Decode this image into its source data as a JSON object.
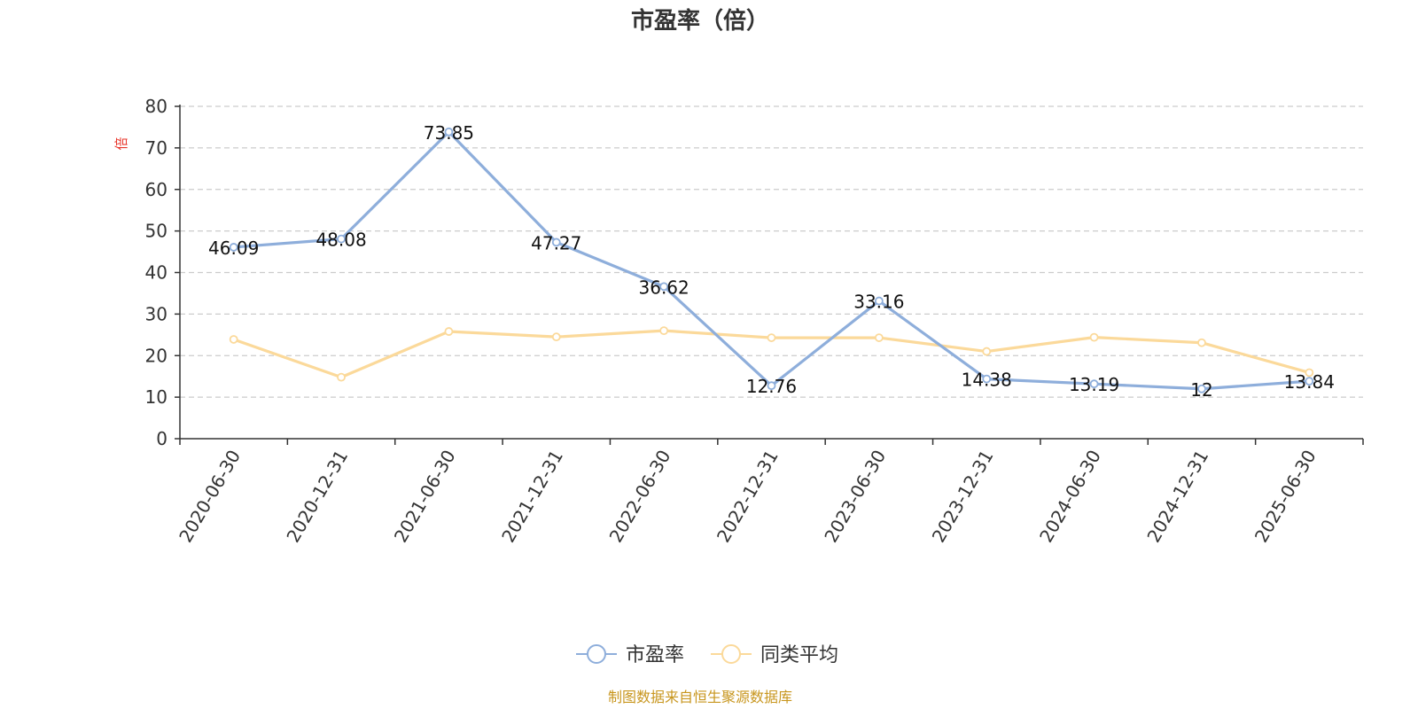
{
  "chart_data": {
    "type": "line",
    "title": "市盈率（倍）",
    "ylabel": "倍",
    "xlabel": "",
    "ylim": [
      0,
      80
    ],
    "y_ticks": [
      0,
      10,
      20,
      30,
      40,
      50,
      60,
      70,
      80
    ],
    "grid": "horizontal dashed",
    "legend_position": "bottom",
    "categories": [
      "2020-06-30",
      "2020-12-31",
      "2021-06-30",
      "2021-12-31",
      "2022-06-30",
      "2022-12-31",
      "2023-06-30",
      "2023-12-31",
      "2024-06-30",
      "2024-12-31",
      "2025-06-30"
    ],
    "series": [
      {
        "name": "市盈率",
        "color": "#8eaedb",
        "values": [
          46.09,
          48.08,
          73.85,
          47.27,
          36.62,
          12.76,
          33.16,
          14.38,
          13.19,
          12,
          13.84
        ],
        "labels": [
          "46.09",
          "48.08",
          "73.85",
          "47.27",
          "36.62",
          "12.76",
          "33.16",
          "14.38",
          "13.19",
          "12",
          "13.84"
        ]
      },
      {
        "name": "同类平均",
        "color": "#fbd99a",
        "values": [
          23.9,
          14.8,
          25.8,
          24.5,
          26.0,
          24.3,
          24.3,
          21.0,
          24.4,
          23.1,
          15.9
        ]
      }
    ],
    "source": "制图数据来自恒生聚源数据库"
  }
}
